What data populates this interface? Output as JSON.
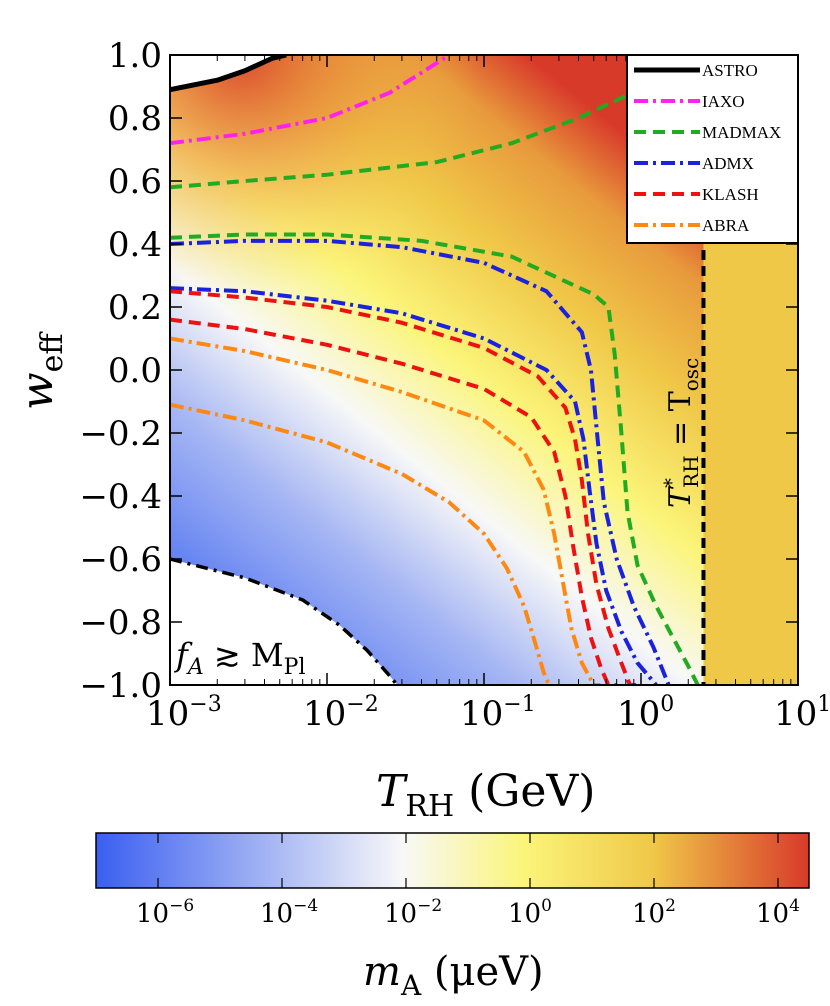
{
  "chart_data": {
    "type": "heatmap",
    "x_axis": {
      "label_main": "T",
      "label_sub": "RH",
      "label_unit": " (GeV)",
      "scale": "log",
      "range": [
        0.001,
        10
      ],
      "ticks": [
        {
          "value": 0.001,
          "base": "10",
          "exp": "−3"
        },
        {
          "value": 0.01,
          "base": "10",
          "exp": "−2"
        },
        {
          "value": 0.1,
          "base": "10",
          "exp": "−1"
        },
        {
          "value": 1,
          "base": "10",
          "exp": "0"
        },
        {
          "value": 10,
          "base": "10",
          "exp": "1"
        }
      ]
    },
    "y_axis": {
      "label_main": "w",
      "label_sub": "eff",
      "range": [
        -1.0,
        1.0
      ],
      "ticks": [
        {
          "value": 1.0,
          "label": "1.0"
        },
        {
          "value": 0.8,
          "label": "0.8"
        },
        {
          "value": 0.6,
          "label": "0.6"
        },
        {
          "value": 0.4,
          "label": "0.4"
        },
        {
          "value": 0.2,
          "label": "0.2"
        },
        {
          "value": 0.0,
          "label": "0.0"
        },
        {
          "value": -0.2,
          "label": "−0.2"
        },
        {
          "value": -0.4,
          "label": "−0.4"
        },
        {
          "value": -0.6,
          "label": "−0.6"
        },
        {
          "value": -0.8,
          "label": "−0.8"
        },
        {
          "value": -1.0,
          "label": "−1.0"
        }
      ]
    },
    "colorbar": {
      "label_main": "m",
      "label_sub": "A",
      "label_unit": " (μeV)",
      "scale": "log",
      "range_exp": [
        -7,
        4.5
      ],
      "stops": [
        "#3a5ff0",
        "#f8f8f8",
        "#fbf57a",
        "#f0c848",
        "#d83a2a"
      ],
      "ticks": [
        {
          "exp_value": -6,
          "base": "10",
          "exp": "−6"
        },
        {
          "exp_value": -4,
          "base": "10",
          "exp": "−4"
        },
        {
          "exp_value": -2,
          "base": "10",
          "exp": "−2"
        },
        {
          "exp_value": 0,
          "base": "10",
          "exp": "0"
        },
        {
          "exp_value": 2,
          "base": "10",
          "exp": "2"
        },
        {
          "exp_value": 4,
          "base": "10",
          "exp": "4"
        }
      ]
    },
    "annotations": {
      "vertical_line_x": 2.5,
      "vertical_label": {
        "t": "T",
        "sup": "*",
        "sub": "RH",
        "eq": " = T",
        "sub2": "osc"
      },
      "corner_label": {
        "f": "f",
        "f_sub": "A",
        "rel": " ≳ M",
        "m_sub": "Pl"
      }
    },
    "legend": [
      {
        "name": "ASTRO",
        "color": "#000000",
        "dash": "solid"
      },
      {
        "name": "IAXO",
        "color": "#ff22ee",
        "dash": "dashdot"
      },
      {
        "name": "MADMAX",
        "color": "#22aa22",
        "dash": "dash"
      },
      {
        "name": "ADMX",
        "color": "#1a22dd",
        "dash": "dashdot"
      },
      {
        "name": "KLASH",
        "color": "#ee1111",
        "dash": "dash"
      },
      {
        "name": "ABRA",
        "color": "#ff8811",
        "dash": "dashdot"
      }
    ],
    "series": [
      {
        "name": "ASTRO",
        "x": [
          0.001,
          0.002,
          0.003,
          0.0045,
          0.0055
        ],
        "y": [
          0.89,
          0.92,
          0.95,
          0.99,
          1.0
        ]
      },
      {
        "name": "IAXO",
        "x": [
          0.001,
          0.003,
          0.01,
          0.025,
          0.045,
          0.06
        ],
        "y": [
          0.72,
          0.75,
          0.8,
          0.88,
          0.96,
          1.0
        ]
      },
      {
        "name": "MADMAX",
        "x": [
          0.001,
          0.003,
          0.01,
          0.05,
          0.15,
          0.4,
          0.8,
          1.3,
          1.7
        ],
        "y": [
          0.58,
          0.6,
          0.62,
          0.66,
          0.72,
          0.8,
          0.87,
          0.94,
          1.0
        ]
      },
      {
        "name": "MADMAX",
        "x": [
          0.001,
          0.003,
          0.01,
          0.04,
          0.15,
          0.5,
          0.62,
          0.68,
          0.75,
          0.82,
          0.95,
          1.25,
          1.6,
          2.0,
          2.3
        ],
        "y": [
          0.42,
          0.43,
          0.43,
          0.41,
          0.36,
          0.24,
          0.2,
          0.05,
          -0.2,
          -0.45,
          -0.62,
          -0.75,
          -0.85,
          -0.94,
          -1.0
        ]
      },
      {
        "name": "ADMX",
        "x": [
          0.001,
          0.003,
          0.01,
          0.03,
          0.1,
          0.25,
          0.42,
          0.48,
          0.52,
          0.58,
          0.7,
          0.9,
          1.2,
          1.5
        ],
        "y": [
          0.4,
          0.41,
          0.41,
          0.39,
          0.34,
          0.25,
          0.12,
          0.0,
          -0.18,
          -0.42,
          -0.6,
          -0.75,
          -0.88,
          -1.0
        ]
      },
      {
        "name": "ADMX",
        "x": [
          0.001,
          0.003,
          0.01,
          0.03,
          0.1,
          0.25,
          0.38,
          0.43,
          0.47,
          0.52,
          0.6,
          0.75,
          0.95,
          1.25
        ],
        "y": [
          0.26,
          0.25,
          0.22,
          0.18,
          0.1,
          0.0,
          -0.1,
          -0.22,
          -0.38,
          -0.55,
          -0.7,
          -0.83,
          -0.93,
          -1.0
        ]
      },
      {
        "name": "KLASH",
        "x": [
          0.001,
          0.003,
          0.01,
          0.03,
          0.1,
          0.22,
          0.33,
          0.38,
          0.42,
          0.46,
          0.52,
          0.62,
          0.75,
          0.85,
          1.0
        ],
        "y": [
          0.25,
          0.23,
          0.2,
          0.15,
          0.07,
          -0.02,
          -0.12,
          -0.22,
          -0.35,
          -0.52,
          -0.68,
          -0.82,
          -0.93,
          -1.0,
          -1.0
        ]
      },
      {
        "name": "KLASH",
        "x": [
          0.001,
          0.003,
          0.01,
          0.03,
          0.1,
          0.2,
          0.28,
          0.33,
          0.37,
          0.42,
          0.48,
          0.56,
          0.62,
          0.7
        ],
        "y": [
          0.16,
          0.13,
          0.08,
          0.02,
          -0.06,
          -0.15,
          -0.26,
          -0.4,
          -0.56,
          -0.72,
          -0.85,
          -0.95,
          -1.0,
          -1.0
        ]
      },
      {
        "name": "ABRA",
        "x": [
          0.001,
          0.003,
          0.01,
          0.03,
          0.1,
          0.18,
          0.24,
          0.28,
          0.32,
          0.36,
          0.42,
          0.5,
          0.55
        ],
        "y": [
          0.1,
          0.06,
          0.0,
          -0.07,
          -0.16,
          -0.26,
          -0.38,
          -0.52,
          -0.68,
          -0.82,
          -0.93,
          -1.0,
          -1.0
        ]
      },
      {
        "name": "ABRA",
        "x": [
          0.001,
          0.003,
          0.01,
          0.03,
          0.06,
          0.1,
          0.14,
          0.18,
          0.21,
          0.24,
          0.26
        ],
        "y": [
          -0.11,
          -0.16,
          -0.23,
          -0.33,
          -0.42,
          -0.52,
          -0.63,
          -0.75,
          -0.86,
          -0.96,
          -1.0
        ]
      },
      {
        "name": "fA boundary",
        "x": [
          0.001,
          0.003,
          0.007,
          0.012,
          0.018,
          0.024,
          0.028
        ],
        "y": [
          -0.6,
          -0.66,
          -0.73,
          -0.81,
          -0.89,
          -0.96,
          -1.0
        ]
      }
    ]
  }
}
